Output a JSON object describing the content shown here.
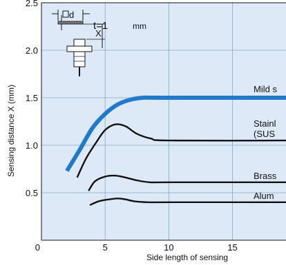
{
  "chart_data": {
    "type": "line",
    "xlabel": "Side length of sensing",
    "ylabel": "Sensing distance X (mm)",
    "xlim": [
      0,
      19.2
    ],
    "ylim": [
      0,
      2.5
    ],
    "x_ticks": [
      "0",
      "5",
      "10",
      "15"
    ],
    "y_ticks": [
      "0.5",
      "1.0",
      "1.5",
      "2.0",
      "2.5"
    ],
    "grid": true,
    "colors": {
      "background": "#dde9f6",
      "grid": "#8aa4c4",
      "highlight": "#1f7acb",
      "line": "#111111"
    },
    "inset": {
      "d_label": "d",
      "x_label": "X",
      "t_label": "t=1",
      "t_unit": "mm"
    },
    "series": [
      {
        "name": "Mild s",
        "highlight": true,
        "points": [
          [
            2,
            0.73
          ],
          [
            3,
            0.95
          ],
          [
            4,
            1.18
          ],
          [
            5,
            1.33
          ],
          [
            6,
            1.43
          ],
          [
            7,
            1.48
          ],
          [
            8,
            1.5
          ],
          [
            9.5,
            1.5
          ],
          [
            19.2,
            1.5
          ]
        ]
      },
      {
        "name": "Stainl",
        "name2": "(SUS",
        "points": [
          [
            2.8,
            0.66
          ],
          [
            3.5,
            0.86
          ],
          [
            4.3,
            1.03
          ],
          [
            5,
            1.16
          ],
          [
            5.8,
            1.22
          ],
          [
            6.6,
            1.2
          ],
          [
            7.5,
            1.12
          ],
          [
            8.6,
            1.07
          ],
          [
            10,
            1.05
          ],
          [
            19.2,
            1.05
          ]
        ]
      },
      {
        "name": "Brass",
        "points": [
          [
            3.7,
            0.52
          ],
          [
            4.2,
            0.62
          ],
          [
            5,
            0.67
          ],
          [
            5.8,
            0.68
          ],
          [
            6.6,
            0.66
          ],
          [
            7.5,
            0.63
          ],
          [
            8.5,
            0.61
          ],
          [
            10,
            0.61
          ],
          [
            19.2,
            0.61
          ]
        ]
      },
      {
        "name": "Alum",
        "points": [
          [
            3.8,
            0.37
          ],
          [
            4.5,
            0.41
          ],
          [
            5.3,
            0.43
          ],
          [
            6,
            0.44
          ],
          [
            6.6,
            0.43
          ],
          [
            7.3,
            0.41
          ],
          [
            8.3,
            0.4
          ],
          [
            10,
            0.4
          ],
          [
            19.2,
            0.4
          ]
        ]
      }
    ]
  }
}
